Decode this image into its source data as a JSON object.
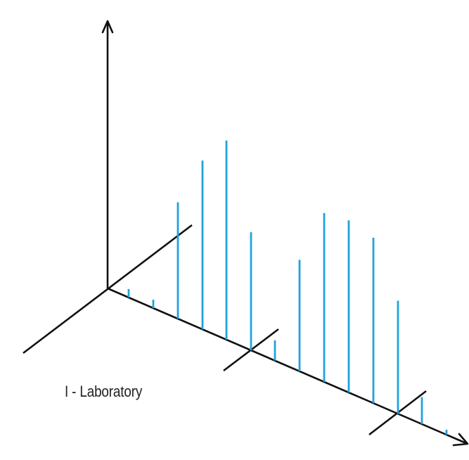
{
  "caption": "I - Laboratory",
  "colors": {
    "peak": "#1fa3dc",
    "axis": "#111111"
  },
  "peaks": [
    {
      "group": 1,
      "intensity": 0.05
    },
    {
      "group": 1,
      "intensity": 0.05
    },
    {
      "group": 1,
      "intensity": 0.69
    },
    {
      "group": 1,
      "intensity": 1.0
    },
    {
      "group": 1,
      "intensity": 1.18
    },
    {
      "group": 1,
      "intensity": 0.7
    },
    {
      "group": 2,
      "intensity": 0.12
    },
    {
      "group": 2,
      "intensity": 0.66
    },
    {
      "group": 2,
      "intensity": 1.0
    },
    {
      "group": 2,
      "intensity": 1.02
    },
    {
      "group": 2,
      "intensity": 0.98
    },
    {
      "group": 2,
      "intensity": 0.67
    },
    {
      "group": 2,
      "intensity": 0.16
    },
    {
      "group": 2,
      "intensity": 0.03
    }
  ]
}
